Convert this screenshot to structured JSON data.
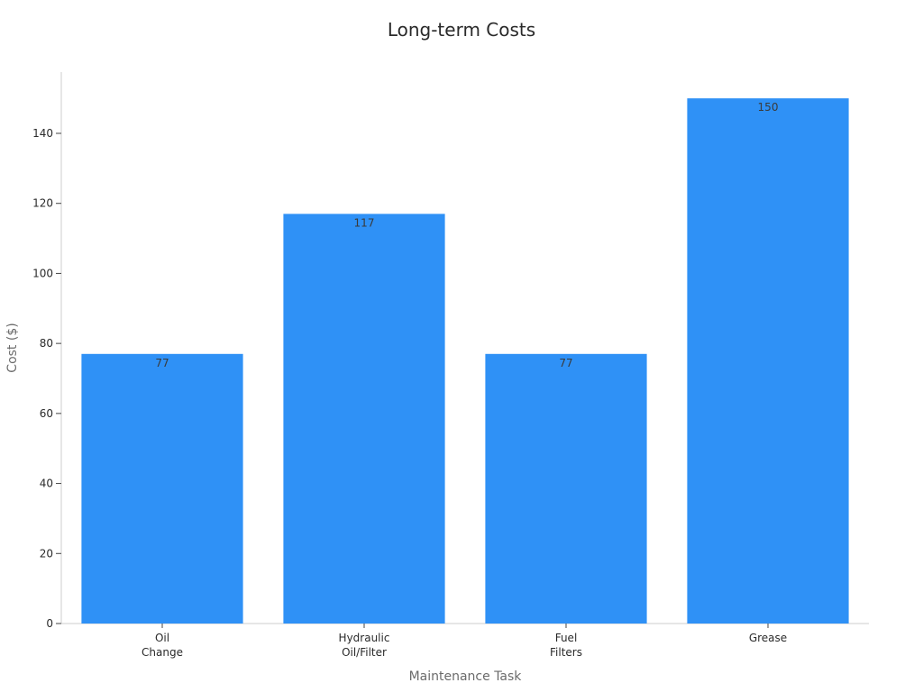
{
  "chart_data": {
    "type": "bar",
    "title": "Long-term Costs",
    "xlabel": "Maintenance Task",
    "ylabel": "Cost ($)",
    "categories": [
      [
        "Oil",
        "Change"
      ],
      [
        "Hydraulic",
        "Oil/Filter"
      ],
      [
        "Fuel",
        "Filters"
      ],
      [
        "Grease"
      ]
    ],
    "values": [
      77,
      117,
      77,
      150
    ],
    "data_labels": [
      "77",
      "117",
      "77",
      "150"
    ],
    "yticks": [
      0,
      20,
      40,
      60,
      80,
      100,
      120,
      140
    ],
    "ylim": [
      0,
      157.5
    ],
    "grid": false,
    "bar_color": "#2f91f6"
  }
}
